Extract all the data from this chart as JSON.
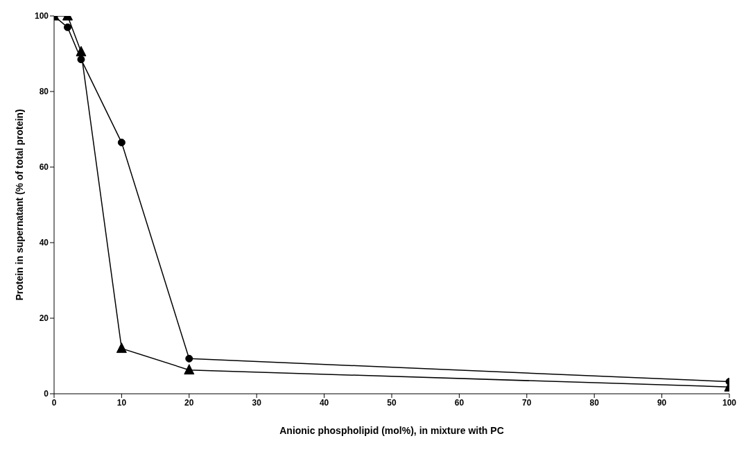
{
  "chart_data": {
    "type": "line",
    "xlabel": "Anionic phospholipid (mol%), in mixture with PC",
    "ylabel": "Protein in supernatant (% of total protein)",
    "x": [
      0,
      2,
      4,
      10,
      20,
      100
    ],
    "series": [
      {
        "color": "#000000",
        "marker": "circle",
        "values": [
          100,
          97,
          88.5,
          66.5,
          9.3,
          3.2
        ]
      },
      {
        "color": "#000000",
        "marker": "triangle",
        "values": [
          100,
          100,
          90.5,
          12,
          6.3,
          1.8
        ]
      }
    ],
    "xlim": [
      0,
      100
    ],
    "xticks": [
      0,
      10,
      20,
      30,
      40,
      50,
      60,
      70,
      80,
      90,
      100
    ],
    "ylim": [
      0,
      100
    ],
    "yticks": [
      0,
      20,
      40,
      60,
      80,
      100
    ],
    "grid": false,
    "legend": false,
    "line_style": "solid"
  }
}
